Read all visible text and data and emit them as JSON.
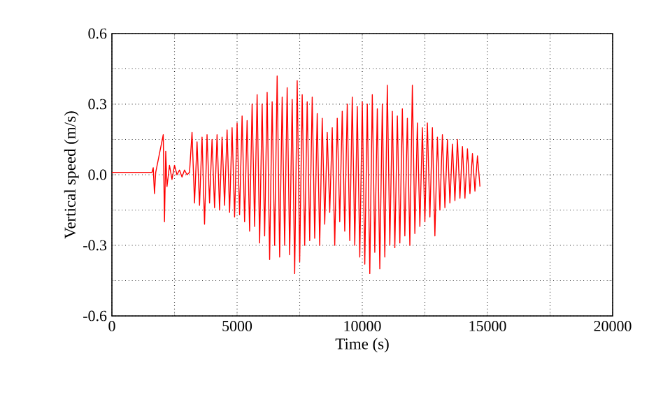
{
  "chart_data": {
    "type": "line",
    "xlabel": "Time (s)",
    "ylabel": "Vertical speed (m/s)",
    "xlim": [
      0,
      20000
    ],
    "ylim": [
      -0.6,
      0.6
    ],
    "xticks": [
      0,
      {
        "value": 2500,
        "label": null
      },
      5000,
      {
        "value": 7500,
        "label": null
      },
      10000,
      {
        "value": 12500,
        "label": null
      },
      15000,
      {
        "value": 17500,
        "label": null
      },
      20000
    ],
    "yticks": [
      -0.6,
      {
        "value": -0.45,
        "label": null
      },
      -0.3,
      {
        "value": -0.15,
        "label": null
      },
      {
        "value": 0,
        "label": "0.0"
      },
      {
        "value": 0.15,
        "label": null
      },
      0.3,
      {
        "value": 0.45,
        "label": null
      },
      0.6
    ],
    "grid": true,
    "line_style": "solid",
    "marker": "none",
    "series": [
      {
        "color": "#ff0000",
        "x": [
          0,
          1600,
          1650,
          1700,
          1750,
          2050,
          2100,
          2150,
          2200,
          2300,
          2400,
          2500,
          2600,
          2700,
          2800,
          2900,
          3000,
          3100,
          3200,
          3300,
          3400,
          3500,
          3600,
          3700,
          3800,
          3900,
          4000,
          4100,
          4200,
          4300,
          4400,
          4500,
          4600,
          4700,
          4800,
          4900,
          5000,
          5100,
          5200,
          5300,
          5400,
          5500,
          5600,
          5700,
          5800,
          5900,
          6000,
          6100,
          6200,
          6300,
          6400,
          6500,
          6600,
          6700,
          6800,
          6900,
          7000,
          7100,
          7200,
          7300,
          7400,
          7500,
          7600,
          7700,
          7800,
          7900,
          8000,
          8100,
          8200,
          8300,
          8400,
          8500,
          8600,
          8700,
          8800,
          8900,
          9000,
          9100,
          9200,
          9300,
          9400,
          9500,
          9600,
          9700,
          9800,
          9900,
          10000,
          10100,
          10200,
          10300,
          10400,
          10500,
          10600,
          10700,
          10800,
          10900,
          11000,
          11100,
          11200,
          11300,
          11400,
          11500,
          11600,
          11700,
          11800,
          11900,
          12000,
          12100,
          12200,
          12300,
          12400,
          12500,
          12600,
          12700,
          12800,
          12900,
          13000,
          13100,
          13200,
          13300,
          13400,
          13500,
          13600,
          13700,
          13800,
          13900,
          14000,
          14100,
          14200,
          14300,
          14400,
          14500,
          14600,
          14700
        ],
        "values": [
          0.01,
          0.01,
          0.03,
          -0.08,
          0.01,
          0.17,
          -0.2,
          0.1,
          -0.05,
          0.04,
          -0.02,
          0.04,
          0.0,
          0.02,
          -0.01,
          0.02,
          0.0,
          0.01,
          0.18,
          -0.12,
          0.14,
          -0.13,
          0.16,
          -0.21,
          0.17,
          -0.12,
          0.15,
          -0.14,
          0.17,
          -0.15,
          0.16,
          -0.13,
          0.19,
          -0.16,
          0.2,
          -0.18,
          0.22,
          -0.17,
          0.25,
          -0.2,
          0.23,
          -0.24,
          0.3,
          -0.22,
          0.34,
          -0.29,
          0.3,
          -0.26,
          0.35,
          -0.36,
          0.31,
          -0.3,
          0.42,
          -0.35,
          0.33,
          -0.3,
          0.37,
          -0.34,
          0.32,
          -0.42,
          0.4,
          -0.37,
          0.34,
          -0.3,
          0.31,
          -0.28,
          0.33,
          -0.27,
          0.26,
          -0.3,
          0.24,
          -0.21,
          0.18,
          -0.16,
          0.2,
          -0.3,
          0.24,
          -0.2,
          0.27,
          -0.24,
          0.3,
          -0.28,
          0.33,
          -0.3,
          0.29,
          -0.35,
          0.31,
          -0.38,
          0.3,
          -0.42,
          0.34,
          -0.33,
          0.28,
          -0.4,
          0.3,
          -0.35,
          0.38,
          -0.3,
          0.27,
          -0.31,
          0.25,
          -0.29,
          0.28,
          -0.26,
          0.24,
          -0.3,
          0.38,
          -0.25,
          0.22,
          -0.22,
          0.2,
          -0.2,
          0.22,
          -0.18,
          0.2,
          -0.26,
          0.16,
          -0.15,
          0.17,
          -0.14,
          0.15,
          -0.12,
          0.13,
          -0.11,
          0.15,
          -0.1,
          0.12,
          -0.1,
          0.11,
          -0.08,
          0.09,
          -0.07,
          0.08,
          -0.05
        ]
      }
    ]
  }
}
